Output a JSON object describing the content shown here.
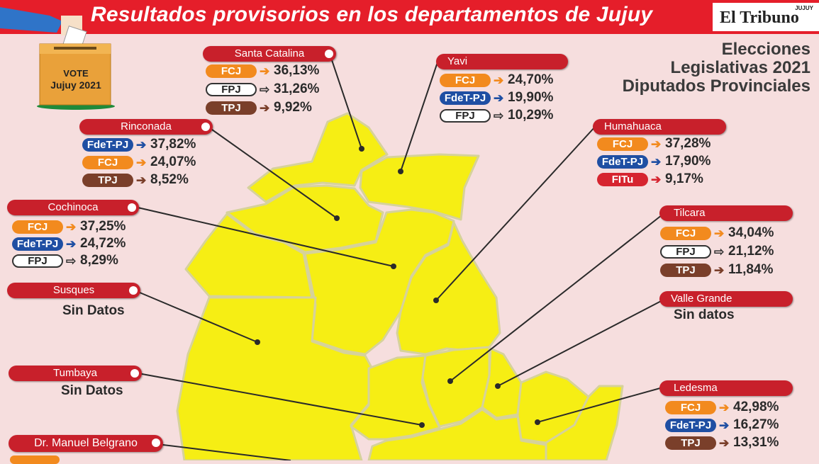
{
  "header": {
    "headline": "Resultados provisorios en los departamentos de Jujuy",
    "brand": "El Tribuno",
    "brand_sub": "JUJUY"
  },
  "ballot": {
    "line1": "VOTE",
    "line2": "Jujuy 2021"
  },
  "title": {
    "line1": "Elecciones",
    "line2": "Legislativas 2021",
    "line3": "Diputados Provinciales"
  },
  "colors": {
    "FCJ": "#f28a1e",
    "FPJ": "#ffffff",
    "TPJ": "#7a3f2a",
    "FdeT-PJ": "#1f4fa3",
    "FITu": "#d6242f",
    "map": "#f6ee14",
    "tag": "#c8202b"
  },
  "departments": [
    {
      "name": "Santa Catalina",
      "results": [
        {
          "party": "FCJ",
          "pct": "36,13%"
        },
        {
          "party": "FPJ",
          "pct": "31,26%"
        },
        {
          "party": "TPJ",
          "pct": "9,92%"
        }
      ]
    },
    {
      "name": "Yavi",
      "results": [
        {
          "party": "FCJ",
          "pct": "24,70%"
        },
        {
          "party": "FdeT-PJ",
          "pct": "19,90%"
        },
        {
          "party": "FPJ",
          "pct": "10,29%"
        }
      ]
    },
    {
      "name": "Rinconada",
      "results": [
        {
          "party": "FdeT-PJ",
          "pct": "37,82%"
        },
        {
          "party": "FCJ",
          "pct": "24,07%"
        },
        {
          "party": "TPJ",
          "pct": "8,52%"
        }
      ]
    },
    {
      "name": "Humahuaca",
      "results": [
        {
          "party": "FCJ",
          "pct": "37,28%"
        },
        {
          "party": "FdeT-PJ",
          "pct": "17,90%"
        },
        {
          "party": "FITu",
          "pct": "9,17%"
        }
      ]
    },
    {
      "name": "Cochinoca",
      "results": [
        {
          "party": "FCJ",
          "pct": "37,25%"
        },
        {
          "party": "FdeT-PJ",
          "pct": "24,72%"
        },
        {
          "party": "FPJ",
          "pct": "8,29%"
        }
      ]
    },
    {
      "name": "Tilcara",
      "results": [
        {
          "party": "FCJ",
          "pct": "34,04%"
        },
        {
          "party": "FPJ",
          "pct": "21,12%"
        },
        {
          "party": "TPJ",
          "pct": "11,84%"
        }
      ]
    },
    {
      "name": "Susques",
      "no_data": "Sin Datos"
    },
    {
      "name": "Valle Grande",
      "no_data": "Sin datos"
    },
    {
      "name": "Tumbaya",
      "no_data": "Sin Datos"
    },
    {
      "name": "Ledesma",
      "results": [
        {
          "party": "FCJ",
          "pct": "42,98%"
        },
        {
          "party": "FdeT-PJ",
          "pct": "16,27%"
        },
        {
          "party": "TPJ",
          "pct": "13,31%"
        }
      ]
    },
    {
      "name": "Dr. Manuel Belgrano"
    }
  ]
}
